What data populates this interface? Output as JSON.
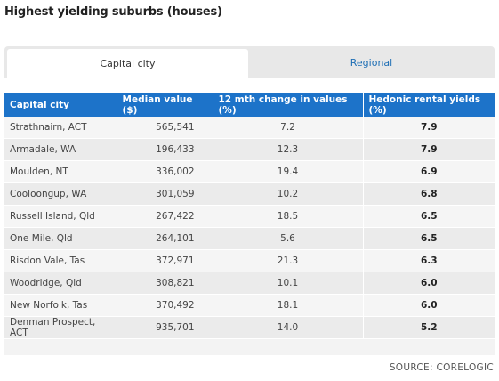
{
  "page_title": "Highest yielding suburbs (houses)",
  "tabs": [
    {
      "label": "Capital city",
      "active": true
    },
    {
      "label": "Regional",
      "active": false
    }
  ],
  "table": {
    "headers": [
      "Capital city",
      "Median value ($)",
      "12 mth change in values (%)",
      "Hedonic rental yields (%)"
    ],
    "rows": [
      [
        "Strathnairn, ACT",
        "565,541",
        "7.2",
        "7.9"
      ],
      [
        "Armadale, WA",
        "196,433",
        "12.3",
        "7.9"
      ],
      [
        "Moulden, NT",
        "336,002",
        "19.4",
        "6.9"
      ],
      [
        "Cooloongup, WA",
        "301,059",
        "10.2",
        "6.8"
      ],
      [
        "Russell Island, Qld",
        "267,422",
        "18.5",
        "6.5"
      ],
      [
        "One Mile, Qld",
        "264,101",
        "5.6",
        "6.5"
      ],
      [
        "Risdon Vale, Tas",
        "372,971",
        "21.3",
        "6.3"
      ],
      [
        "Woodridge, Qld",
        "308,821",
        "10.1",
        "6.0"
      ],
      [
        "New Norfolk, Tas",
        "370,492",
        "18.1",
        "6.0"
      ],
      [
        "Denman Prospect, ACT",
        "935,701",
        "14.0",
        "5.2"
      ]
    ]
  },
  "source": "SOURCE: CORELOGIC",
  "colors": {
    "header_bg": "#1d73c9",
    "tab_link": "#1f6fb5"
  }
}
